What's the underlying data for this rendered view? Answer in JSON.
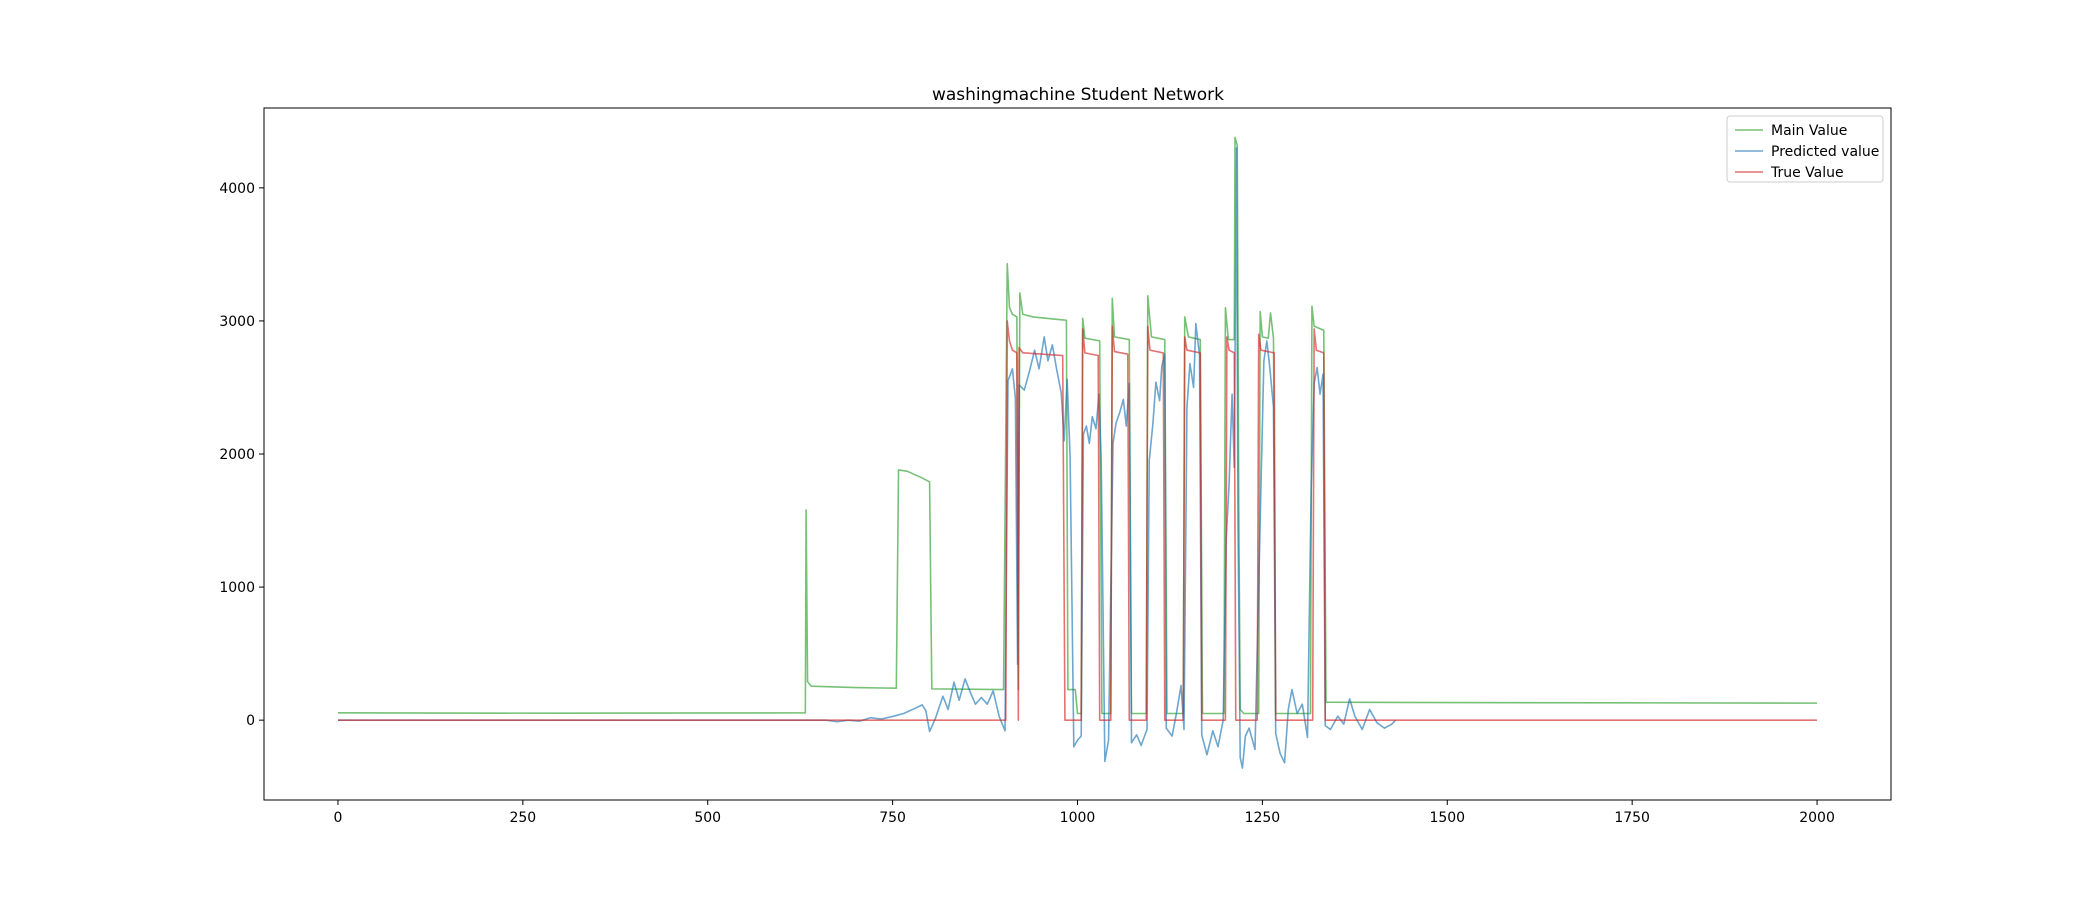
{
  "chart_data": {
    "type": "line",
    "title": "washingmachine Student Network",
    "xlabel": "",
    "ylabel": "",
    "xlim": [
      -100,
      2100
    ],
    "ylim": [
      -600,
      4600
    ],
    "x_ticks": [
      0,
      250,
      500,
      750,
      1000,
      1250,
      1500,
      1750,
      2000
    ],
    "y_ticks": [
      0,
      1000,
      2000,
      3000,
      4000
    ],
    "grid": false,
    "legend_position": "top-right",
    "series": [
      {
        "name": "Main Value",
        "color": "#2ca02c",
        "points": [
          [
            0,
            55
          ],
          [
            300,
            52
          ],
          [
            632,
            55
          ],
          [
            633,
            1580
          ],
          [
            635,
            290
          ],
          [
            640,
            255
          ],
          [
            700,
            245
          ],
          [
            755,
            240
          ],
          [
            758,
            1880
          ],
          [
            770,
            1870
          ],
          [
            790,
            1820
          ],
          [
            800,
            1790
          ],
          [
            803,
            235
          ],
          [
            900,
            230
          ],
          [
            905,
            3430
          ],
          [
            908,
            3100
          ],
          [
            912,
            3050
          ],
          [
            918,
            3030
          ],
          [
            920,
            230
          ],
          [
            922,
            3210
          ],
          [
            926,
            3050
          ],
          [
            940,
            3030
          ],
          [
            975,
            3010
          ],
          [
            985,
            3005
          ],
          [
            987,
            230
          ],
          [
            997,
            230
          ],
          [
            1000,
            50
          ],
          [
            1005,
            50
          ],
          [
            1007,
            3020
          ],
          [
            1010,
            2870
          ],
          [
            1030,
            2850
          ],
          [
            1033,
            50
          ],
          [
            1045,
            50
          ],
          [
            1047,
            3170
          ],
          [
            1050,
            2880
          ],
          [
            1070,
            2860
          ],
          [
            1073,
            50
          ],
          [
            1093,
            50
          ],
          [
            1095,
            3190
          ],
          [
            1100,
            2880
          ],
          [
            1118,
            2860
          ],
          [
            1121,
            50
          ],
          [
            1143,
            50
          ],
          [
            1145,
            3030
          ],
          [
            1150,
            2880
          ],
          [
            1166,
            2860
          ],
          [
            1169,
            50
          ],
          [
            1198,
            50
          ],
          [
            1200,
            3100
          ],
          [
            1204,
            2860
          ],
          [
            1212,
            2860
          ],
          [
            1213,
            4380
          ],
          [
            1216,
            4320
          ],
          [
            1218,
            1650
          ],
          [
            1220,
            80
          ],
          [
            1225,
            50
          ],
          [
            1245,
            50
          ],
          [
            1247,
            3070
          ],
          [
            1250,
            2880
          ],
          [
            1258,
            2870
          ],
          [
            1261,
            3060
          ],
          [
            1265,
            2870
          ],
          [
            1268,
            50
          ],
          [
            1315,
            50
          ],
          [
            1317,
            3110
          ],
          [
            1320,
            2960
          ],
          [
            1333,
            2930
          ],
          [
            1336,
            135
          ],
          [
            1500,
            132
          ],
          [
            1750,
            130
          ],
          [
            2000,
            128
          ]
        ]
      },
      {
        "name": "Predicted value",
        "color": "#1f77b4",
        "points": [
          [
            0,
            0
          ],
          [
            660,
            0
          ],
          [
            675,
            -12
          ],
          [
            690,
            0
          ],
          [
            705,
            -8
          ],
          [
            720,
            18
          ],
          [
            735,
            8
          ],
          [
            750,
            28
          ],
          [
            765,
            50
          ],
          [
            780,
            88
          ],
          [
            790,
            115
          ],
          [
            795,
            70
          ],
          [
            800,
            -85
          ],
          [
            808,
            15
          ],
          [
            818,
            180
          ],
          [
            825,
            80
          ],
          [
            833,
            285
          ],
          [
            840,
            150
          ],
          [
            848,
            310
          ],
          [
            855,
            210
          ],
          [
            862,
            120
          ],
          [
            870,
            170
          ],
          [
            878,
            120
          ],
          [
            886,
            220
          ],
          [
            894,
            30
          ],
          [
            902,
            -80
          ],
          [
            906,
            2550
          ],
          [
            912,
            2640
          ],
          [
            916,
            2420
          ],
          [
            919,
            420
          ],
          [
            921,
            2520
          ],
          [
            928,
            2480
          ],
          [
            935,
            2620
          ],
          [
            942,
            2780
          ],
          [
            948,
            2640
          ],
          [
            955,
            2880
          ],
          [
            960,
            2700
          ],
          [
            966,
            2820
          ],
          [
            972,
            2630
          ],
          [
            978,
            2460
          ],
          [
            982,
            2100
          ],
          [
            986,
            2560
          ],
          [
            990,
            1980
          ],
          [
            995,
            -200
          ],
          [
            1000,
            -150
          ],
          [
            1005,
            -120
          ],
          [
            1008,
            2150
          ],
          [
            1012,
            2210
          ],
          [
            1016,
            2080
          ],
          [
            1020,
            2280
          ],
          [
            1025,
            2190
          ],
          [
            1029,
            2450
          ],
          [
            1032,
            1960
          ],
          [
            1037,
            -310
          ],
          [
            1042,
            -150
          ],
          [
            1048,
            2080
          ],
          [
            1052,
            2230
          ],
          [
            1057,
            2310
          ],
          [
            1062,
            2410
          ],
          [
            1066,
            2210
          ],
          [
            1070,
            2530
          ],
          [
            1073,
            -170
          ],
          [
            1080,
            -110
          ],
          [
            1086,
            -190
          ],
          [
            1094,
            -70
          ],
          [
            1097,
            1950
          ],
          [
            1102,
            2230
          ],
          [
            1106,
            2540
          ],
          [
            1111,
            2400
          ],
          [
            1114,
            2660
          ],
          [
            1118,
            2750
          ],
          [
            1120,
            -60
          ],
          [
            1128,
            -120
          ],
          [
            1134,
            60
          ],
          [
            1140,
            260
          ],
          [
            1144,
            -70
          ],
          [
            1148,
            2350
          ],
          [
            1152,
            2680
          ],
          [
            1157,
            2500
          ],
          [
            1160,
            2980
          ],
          [
            1165,
            2740
          ],
          [
            1168,
            -110
          ],
          [
            1175,
            -260
          ],
          [
            1183,
            -80
          ],
          [
            1190,
            -200
          ],
          [
            1197,
            0
          ],
          [
            1201,
            1350
          ],
          [
            1205,
            1780
          ],
          [
            1209,
            2450
          ],
          [
            1212,
            1900
          ],
          [
            1215,
            4300
          ],
          [
            1217,
            1500
          ],
          [
            1220,
            -280
          ],
          [
            1223,
            -360
          ],
          [
            1227,
            -120
          ],
          [
            1232,
            -60
          ],
          [
            1240,
            -220
          ],
          [
            1247,
            1500
          ],
          [
            1252,
            2700
          ],
          [
            1256,
            2850
          ],
          [
            1260,
            2650
          ],
          [
            1265,
            2350
          ],
          [
            1268,
            -100
          ],
          [
            1274,
            -250
          ],
          [
            1280,
            -320
          ],
          [
            1285,
            80
          ],
          [
            1290,
            230
          ],
          [
            1297,
            50
          ],
          [
            1304,
            120
          ],
          [
            1311,
            -130
          ],
          [
            1316,
            1750
          ],
          [
            1320,
            2530
          ],
          [
            1324,
            2650
          ],
          [
            1328,
            2450
          ],
          [
            1332,
            2600
          ],
          [
            1335,
            -40
          ],
          [
            1342,
            -70
          ],
          [
            1352,
            30
          ],
          [
            1360,
            -30
          ],
          [
            1368,
            160
          ],
          [
            1375,
            30
          ],
          [
            1385,
            -70
          ],
          [
            1395,
            80
          ],
          [
            1405,
            -20
          ],
          [
            1415,
            -60
          ],
          [
            1425,
            -30
          ],
          [
            1430,
            0
          ]
        ]
      },
      {
        "name": "True Value",
        "color": "#d62728",
        "points": [
          [
            0,
            0
          ],
          [
            900,
            0
          ],
          [
            903,
            0
          ],
          [
            905,
            3000
          ],
          [
            908,
            2850
          ],
          [
            912,
            2780
          ],
          [
            918,
            2760
          ],
          [
            920,
            0
          ],
          [
            921,
            2800
          ],
          [
            926,
            2760
          ],
          [
            980,
            2740
          ],
          [
            983,
            0
          ],
          [
            1005,
            0
          ],
          [
            1007,
            2940
          ],
          [
            1010,
            2760
          ],
          [
            1028,
            2740
          ],
          [
            1030,
            0
          ],
          [
            1045,
            0
          ],
          [
            1047,
            2960
          ],
          [
            1050,
            2770
          ],
          [
            1068,
            2750
          ],
          [
            1070,
            0
          ],
          [
            1093,
            0
          ],
          [
            1095,
            2960
          ],
          [
            1098,
            2780
          ],
          [
            1116,
            2760
          ],
          [
            1118,
            0
          ],
          [
            1143,
            0
          ],
          [
            1145,
            2880
          ],
          [
            1148,
            2780
          ],
          [
            1166,
            2760
          ],
          [
            1168,
            0
          ],
          [
            1200,
            0
          ],
          [
            1202,
            2880
          ],
          [
            1205,
            2780
          ],
          [
            1212,
            2760
          ],
          [
            1214,
            0
          ],
          [
            1243,
            0
          ],
          [
            1245,
            2900
          ],
          [
            1248,
            2780
          ],
          [
            1266,
            2760
          ],
          [
            1268,
            0
          ],
          [
            1318,
            0
          ],
          [
            1320,
            2940
          ],
          [
            1323,
            2780
          ],
          [
            1333,
            2760
          ],
          [
            1335,
            0
          ],
          [
            2000,
            0
          ]
        ]
      }
    ]
  }
}
